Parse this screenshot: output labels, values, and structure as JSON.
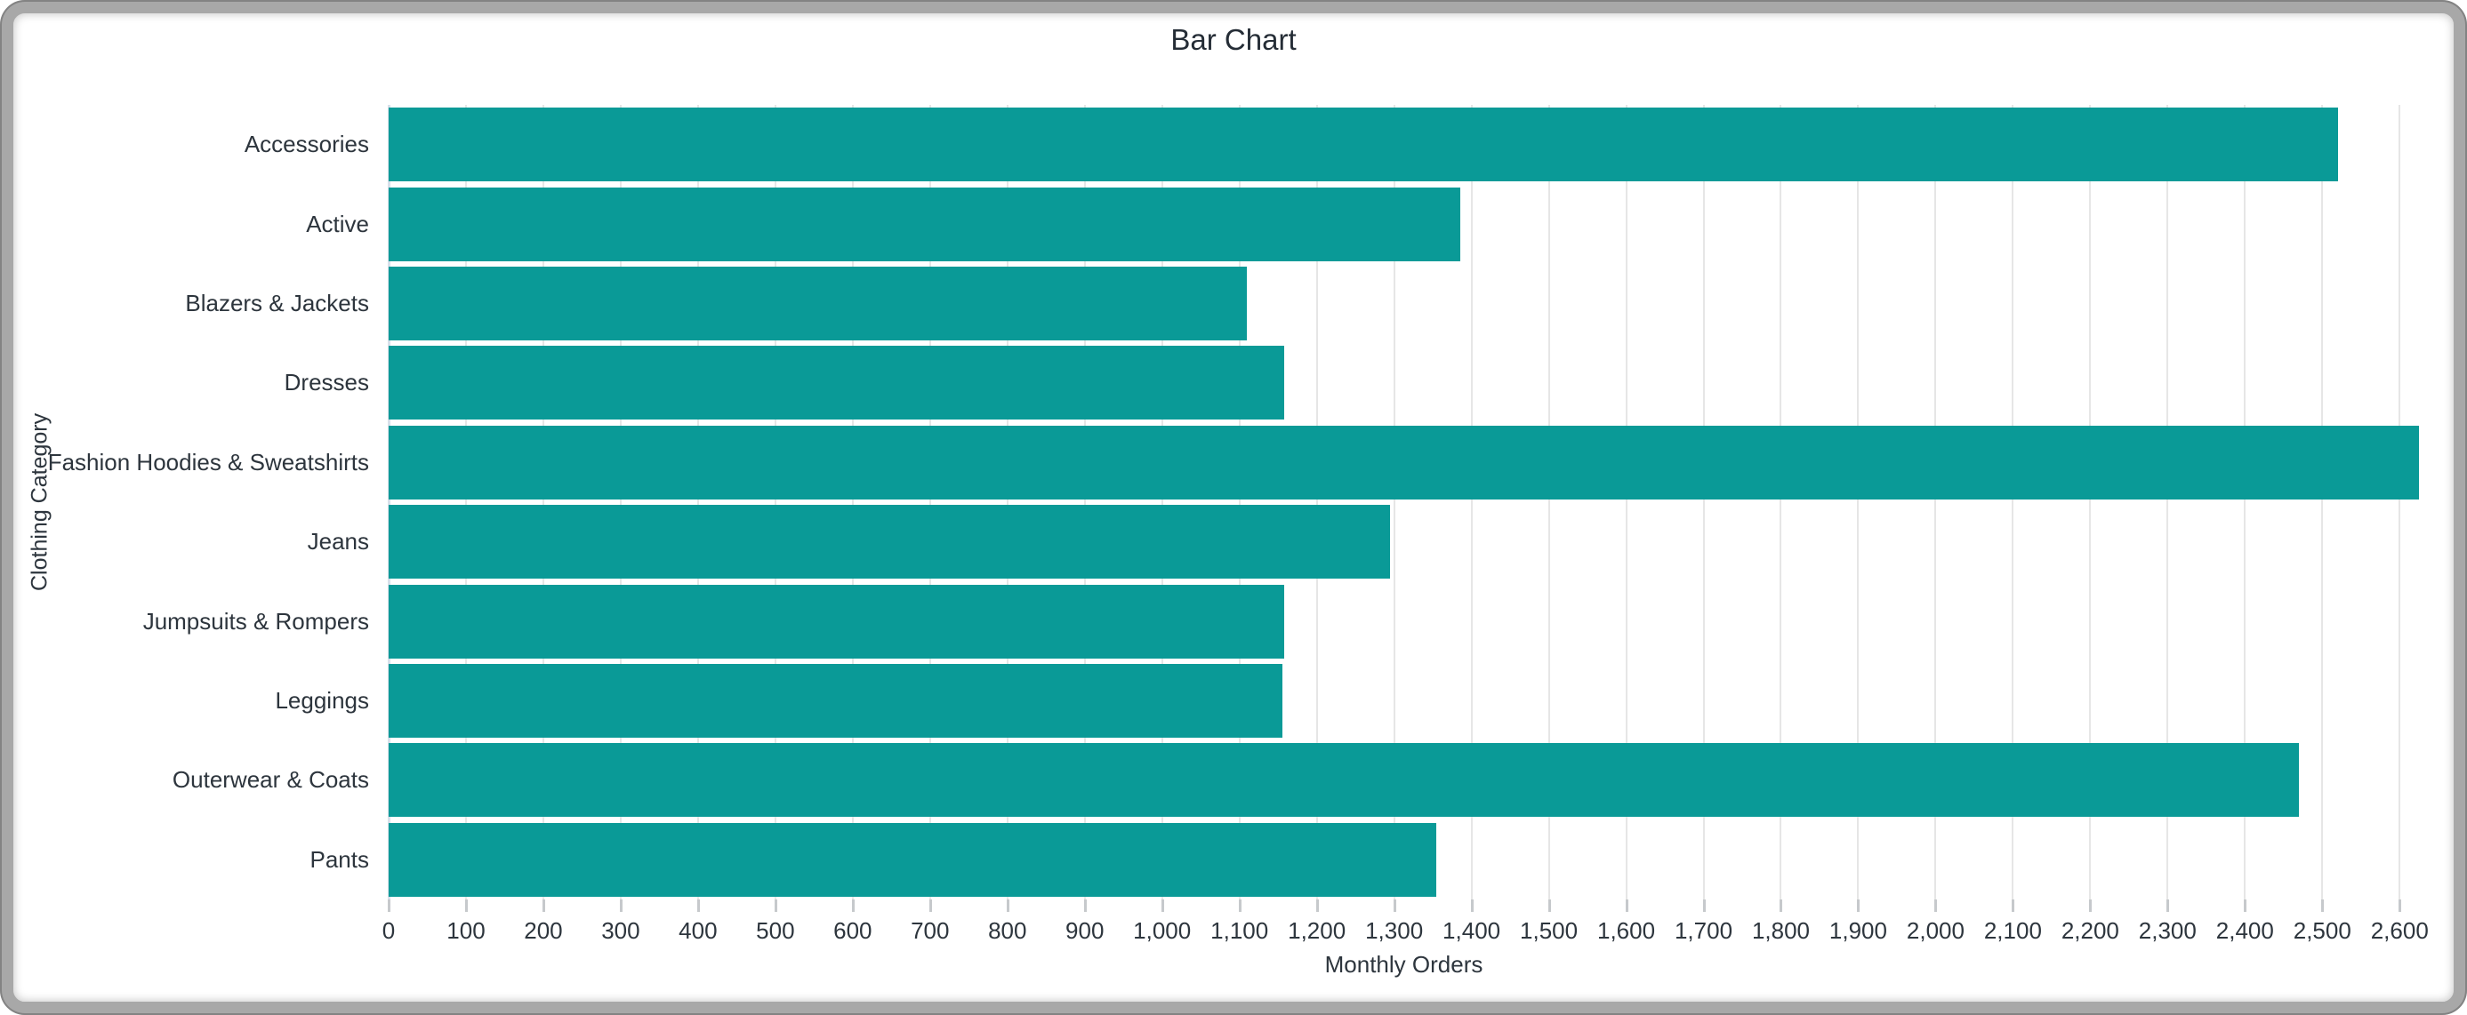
{
  "window": {
    "frame_color": "#a8a8a8",
    "background_color": "#ffffff"
  },
  "chart": {
    "title": "Bar Chart",
    "x_axis_title": "Monthly Orders",
    "y_axis_title": "Clothing Category",
    "bar_color": "#0a9a97",
    "gridline_color": "#e6e6e6",
    "axis_line_color": "#d9e0ea",
    "tick_mark_color": "#c6c9cc",
    "text_color": "#2d353d",
    "x_tick_labels": [
      "0",
      "100",
      "200",
      "300",
      "400",
      "500",
      "600",
      "700",
      "800",
      "900",
      "1,000",
      "1,100",
      "1,200",
      "1,300",
      "1,400",
      "1,500",
      "1,600",
      "1,700",
      "1,800",
      "1,900",
      "2,000",
      "2,100",
      "2,200",
      "2,300",
      "2,400",
      "2,500",
      "2,600"
    ]
  },
  "chart_data": {
    "type": "bar",
    "orientation": "horizontal",
    "title": "Bar Chart",
    "xlabel": "Monthly Orders",
    "ylabel": "Clothing Category",
    "categories": [
      "Accessories",
      "Active",
      "Blazers & Jackets",
      "Dresses",
      "Fashion Hoodies & Sweatshirts",
      "Jeans",
      "Jumpsuits & Rompers",
      "Leggings",
      "Outerwear & Coats",
      "Pants"
    ],
    "values": [
      2520,
      1385,
      1110,
      1158,
      2625,
      1295,
      1158,
      1155,
      2470,
      1355
    ],
    "xlim": [
      0,
      2625
    ],
    "x_tick_step": 100,
    "grid": true,
    "legend": false
  }
}
